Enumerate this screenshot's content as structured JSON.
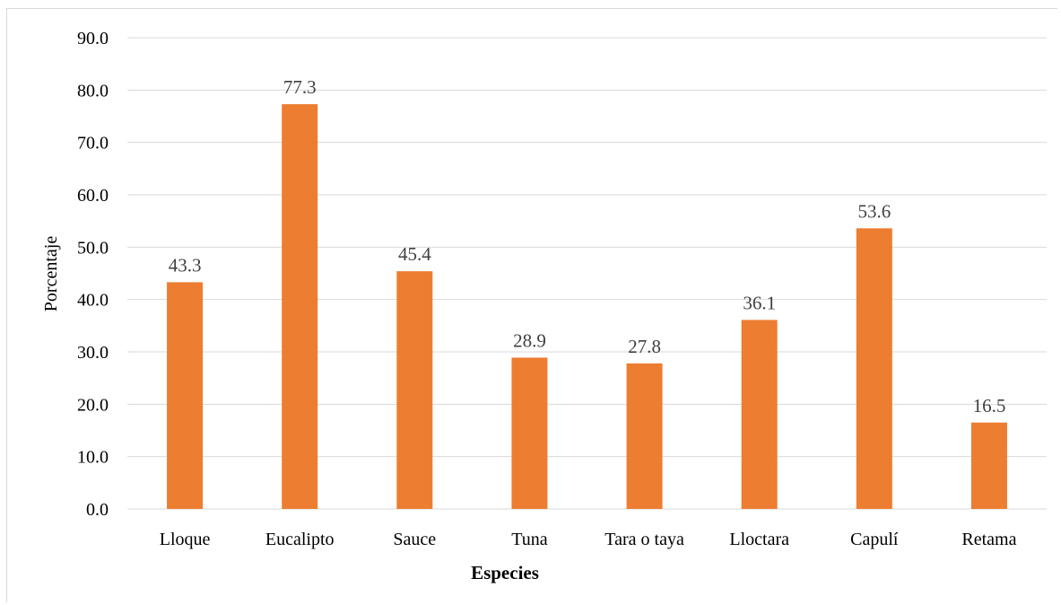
{
  "chart_data": {
    "type": "bar",
    "title": "",
    "xlabel": "Especies",
    "ylabel": "Porcentaje",
    "categories": [
      "Lloque",
      "Eucalipto",
      "Sauce",
      "Tuna",
      "Tara o taya",
      "Lloctara",
      "Capulí",
      "Retama"
    ],
    "values": [
      43.3,
      77.3,
      45.4,
      28.9,
      27.8,
      36.1,
      53.6,
      16.5
    ],
    "data_labels": [
      "43.3",
      "77.3",
      "45.4",
      "28.9",
      "27.8",
      "36.1",
      "53.6",
      "16.5"
    ],
    "ylim": [
      0,
      90
    ],
    "yticks": [
      "0.0",
      "10.0",
      "20.0",
      "30.0",
      "40.0",
      "50.0",
      "60.0",
      "70.0",
      "80.0",
      "90.0"
    ],
    "grid": true,
    "legend": "none",
    "bar_color": "#ED7D31",
    "grid_color": "#d9d9d9"
  }
}
